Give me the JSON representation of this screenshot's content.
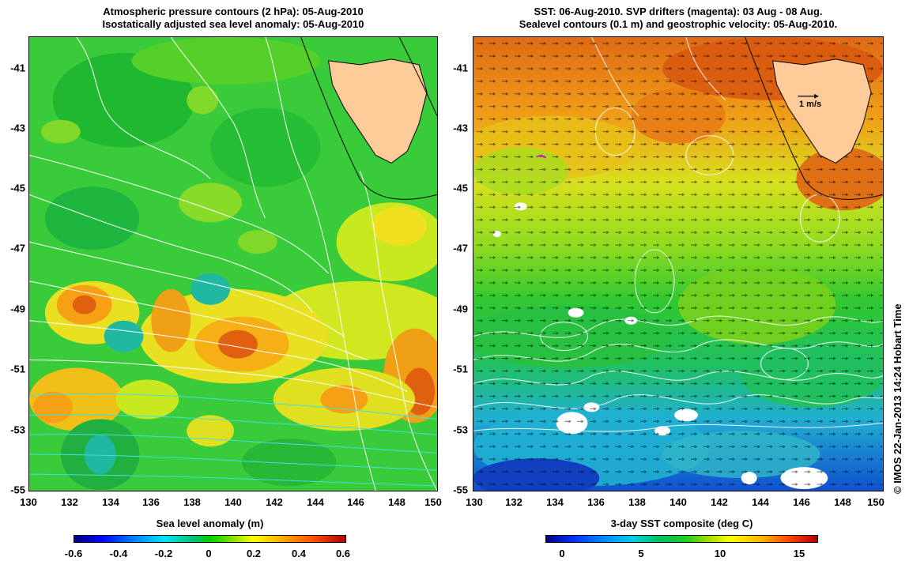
{
  "left_panel": {
    "title_lines": [
      "Atmospheric pressure contours (2 hPa): 05-Aug-2010",
      "Isostatically adjusted sea level anomaly: 05-Aug-2010"
    ],
    "colorbar": {
      "title": "Sea level anomaly (m)",
      "labels": [
        "-0.6",
        "-0.4",
        "-0.2",
        "0",
        "0.2",
        "0.4",
        "0.6"
      ]
    }
  },
  "right_panel": {
    "title_lines": [
      "SST: 06-Aug-2010. SVP drifters (magenta): 03 Aug - 08 Aug.",
      "Sealevel contours (0.1 m) and geostrophic velocity: 05-Aug-2010."
    ],
    "scale_label": "1 m/s",
    "colorbar": {
      "title": "3-day SST composite (deg C)",
      "labels": [
        "0",
        "5",
        "10",
        "15"
      ]
    }
  },
  "axes": {
    "x_ticks": [
      "130",
      "132",
      "134",
      "136",
      "138",
      "140",
      "142",
      "144",
      "146",
      "148",
      "150"
    ],
    "y_ticks": [
      "-41",
      "-43",
      "-45",
      "-47",
      "-49",
      "-51",
      "-53",
      "-55"
    ]
  },
  "credit": "© IMOS 22-Jan-2013 14:24 Hobart Time",
  "colors": {
    "land": "#ffcc99",
    "warm": "#e0701a",
    "green": "#2ec82e",
    "cold": "#1aa0e0",
    "contour": "#ffffff",
    "cyan_contour": "#40e0e0"
  }
}
